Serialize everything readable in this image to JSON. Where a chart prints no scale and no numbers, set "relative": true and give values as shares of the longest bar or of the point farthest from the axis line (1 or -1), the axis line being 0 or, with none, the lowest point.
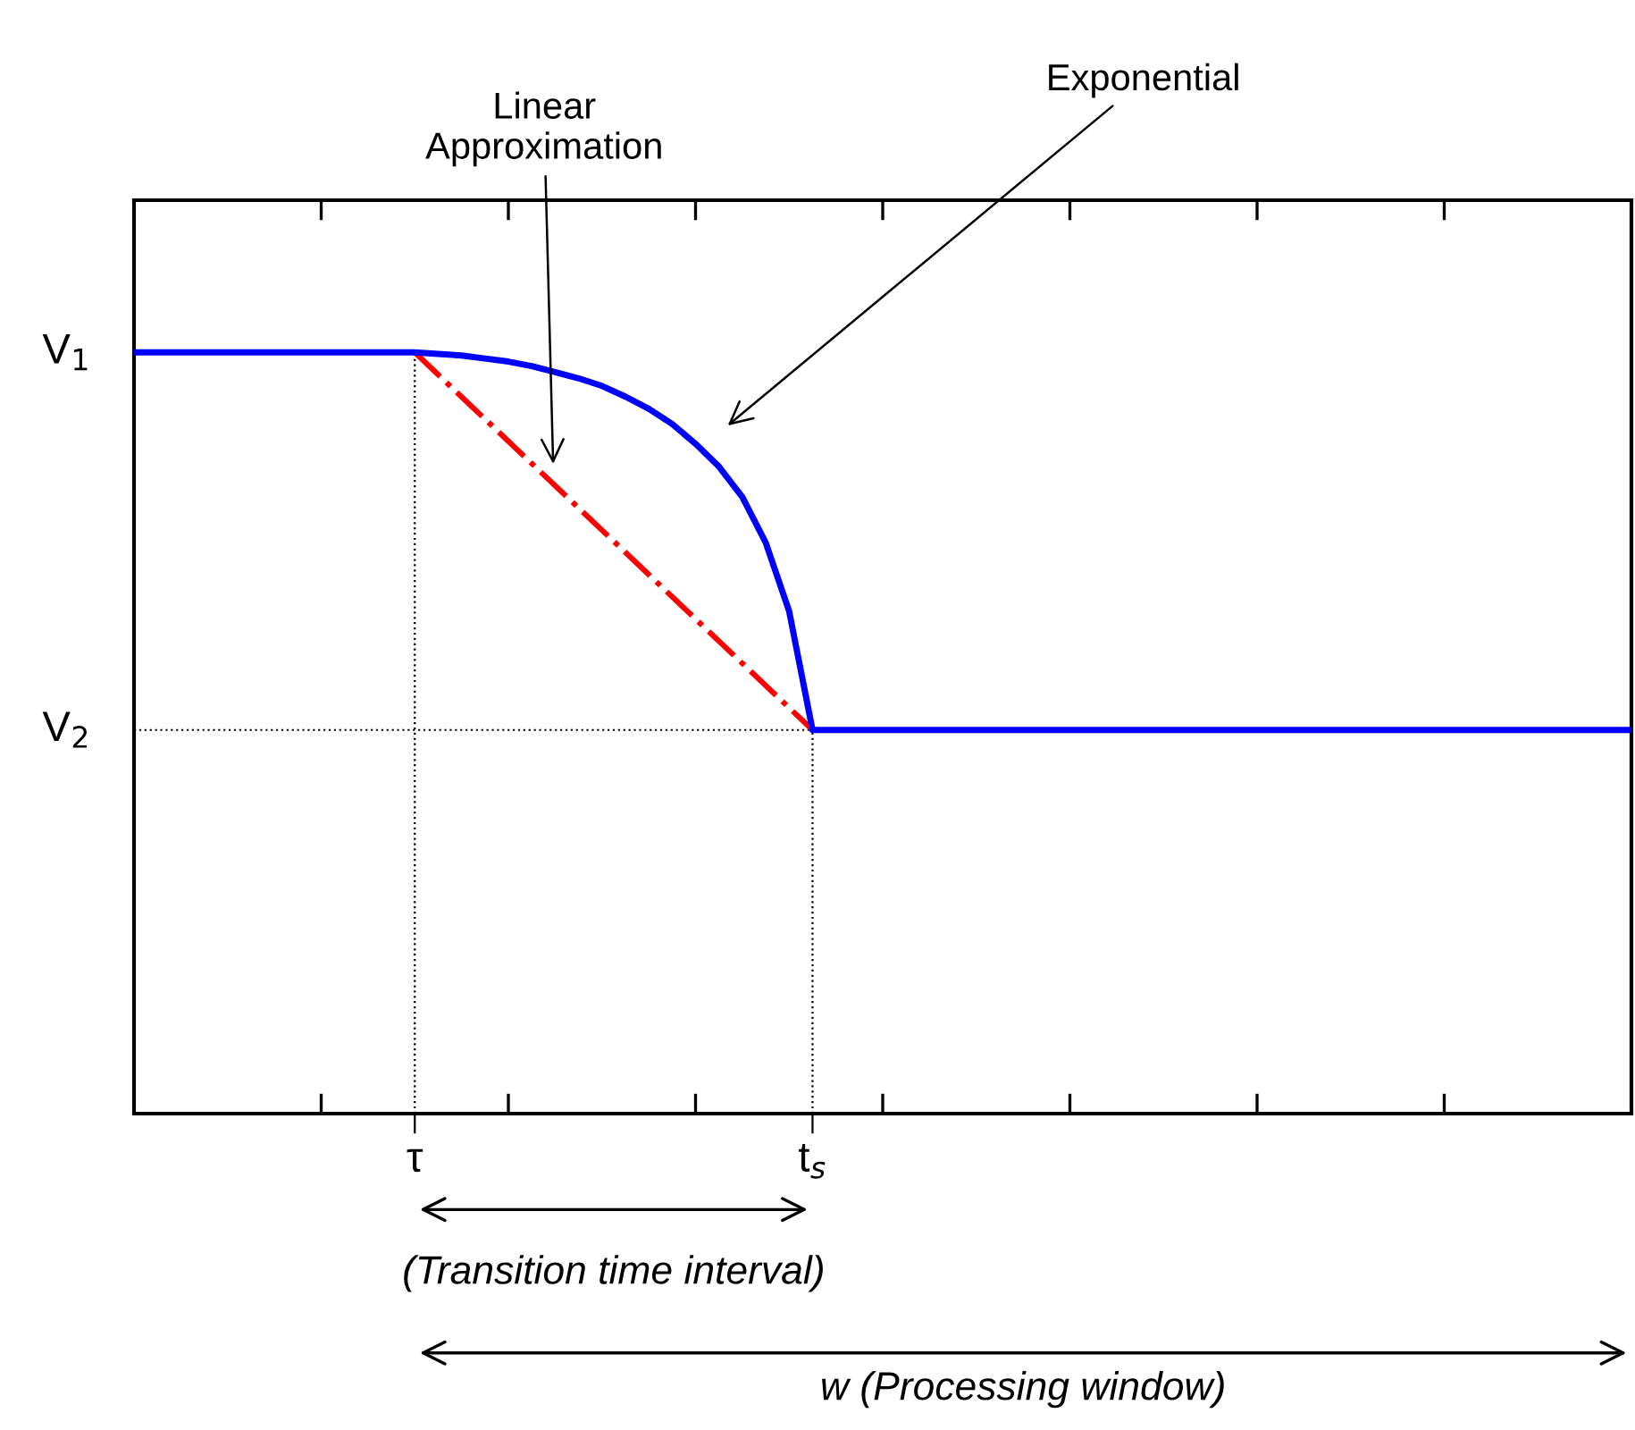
{
  "chart_data": {
    "type": "line",
    "relative": true,
    "categories": [
      null,
      null,
      null,
      null,
      null,
      null,
      null,
      null,
      null,
      null,
      null,
      null,
      "τ",
      null,
      null,
      null,
      null,
      null,
      null,
      null,
      null,
      null,
      null,
      null,
      null,
      null,
      null,
      null,
      null,
      "t$_{s}$",
      null,
      null,
      null,
      null,
      null,
      null,
      null,
      null,
      null,
      null,
      null,
      null,
      null,
      null,
      null,
      null,
      null,
      null,
      null,
      null,
      null,
      null,
      null,
      null,
      null,
      null,
      null,
      null,
      null,
      null,
      null,
      null,
      null,
      null,
      null
    ],
    "series": [
      {
        "color": "#ff0000",
        "line_style": "dashdot",
        "values": [
          null,
          null,
          null,
          null,
          null,
          null,
          null,
          null,
          null,
          null,
          null,
          null,
          1,
          null,
          null,
          null,
          null,
          null,
          null,
          null,
          null,
          null,
          null,
          null,
          null,
          null,
          null,
          null,
          null,
          0.504,
          null,
          null,
          null,
          null,
          null,
          null,
          null,
          null,
          null,
          null,
          null,
          null,
          null,
          null,
          null,
          null,
          null,
          null,
          null,
          null,
          null,
          null,
          null,
          null,
          null,
          null,
          null,
          null,
          null,
          null,
          null,
          null,
          null,
          null,
          null
        ]
      },
      {
        "color": "#0000ff",
        "line_style": "solid",
        "values": [
          1,
          1,
          1,
          1,
          1,
          1,
          1,
          1,
          1,
          1,
          1,
          1,
          1,
          0.998,
          0.996,
          0.992,
          0.988,
          0.982,
          0.974,
          0.966,
          0.956,
          0.942,
          0.926,
          0.906,
          0.88,
          0.85,
          0.81,
          0.75,
          0.66,
          0.504,
          0.504,
          0.504,
          0.504,
          0.504,
          0.504,
          0.504,
          0.504,
          0.504,
          0.504,
          0.504,
          0.504,
          0.504,
          0.504,
          0.504,
          0.504,
          0.504,
          0.504,
          0.504,
          0.504,
          0.504,
          0.504,
          0.504,
          0.504,
          0.504,
          0.504,
          0.504,
          0.504,
          0.504,
          0.504,
          0.504,
          0.504,
          0.504,
          0.504,
          0.504,
          0.504
        ]
      }
    ],
    "ref_lines": [
      {
        "axis": "x",
        "value": "τ",
        "color": "#000000",
        "line_style": "dotted"
      },
      {
        "axis": "x",
        "value": "t$_{s}$",
        "color": "#000000",
        "line_style": "dotted"
      },
      {
        "axis": "y",
        "value": 0.504,
        "label": "V$_{2}$",
        "color": "#000000",
        "line_style": "dotted"
      }
    ],
    "annotations": [
      "Linear\nApproximation",
      "Exponential",
      "(Transition time interval)",
      "w (Processing window)",
      "V$_{1}$"
    ],
    "grid": false,
    "legend": false
  }
}
